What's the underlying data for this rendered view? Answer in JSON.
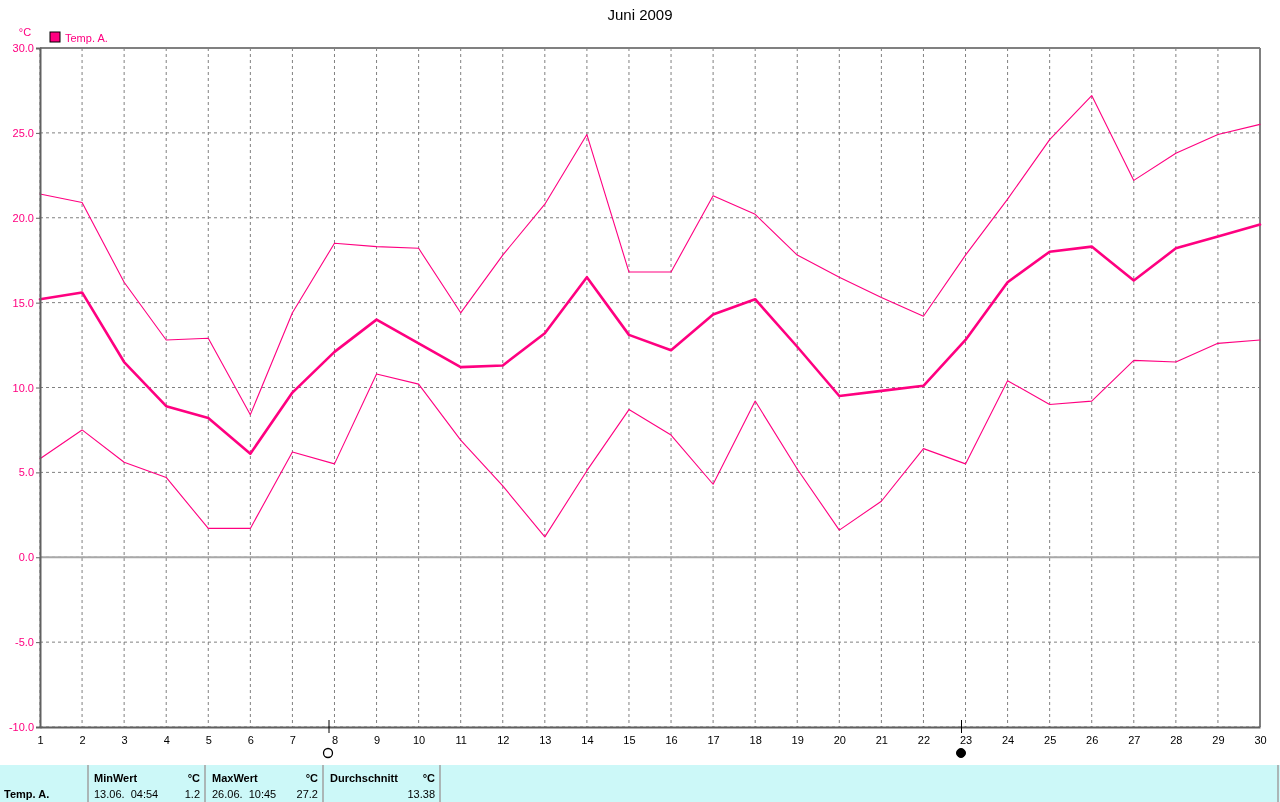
{
  "chart_data": {
    "type": "line",
    "title": "Juni 2009",
    "ylabel": "°C",
    "x": [
      1,
      2,
      3,
      4,
      5,
      6,
      7,
      8,
      9,
      10,
      11,
      12,
      13,
      14,
      15,
      16,
      17,
      18,
      19,
      20,
      21,
      22,
      23,
      24,
      25,
      26,
      27,
      28,
      29,
      30
    ],
    "xlim": [
      1,
      30
    ],
    "xticks": [
      1,
      2,
      3,
      4,
      5,
      6,
      7,
      8,
      9,
      10,
      11,
      12,
      13,
      14,
      15,
      16,
      17,
      18,
      19,
      20,
      21,
      22,
      23,
      24,
      25,
      26,
      27,
      28,
      29,
      30
    ],
    "ylim": [
      -10,
      30
    ],
    "yticks": [
      {
        "value": -10,
        "label": "-10.0"
      },
      {
        "value": -5,
        "label": "-5.0"
      },
      {
        "value": 0,
        "label": "0.0"
      },
      {
        "value": 5,
        "label": "5.0"
      },
      {
        "value": 10,
        "label": "10.0"
      },
      {
        "value": 15,
        "label": "15.0"
      },
      {
        "value": 20,
        "label": "20.0"
      },
      {
        "value": 25,
        "label": "25.0"
      },
      {
        "value": 30,
        "label": "30.0"
      }
    ],
    "grid": true,
    "legend": "top left",
    "series": [
      {
        "name": "Temp. A.",
        "color": "#ff0080",
        "values": [
          15.2,
          15.6,
          11.5,
          8.9,
          8.2,
          6.1,
          9.7,
          12.1,
          14.0,
          12.6,
          11.2,
          11.3,
          13.2,
          16.5,
          13.1,
          12.2,
          14.3,
          15.2,
          12.4,
          9.5,
          9.8,
          10.1,
          12.8,
          16.2,
          18.0,
          18.3,
          16.3,
          18.2,
          18.9,
          19.6
        ]
      },
      {
        "color": "#ff0080",
        "values": [
          21.4,
          20.9,
          16.2,
          12.8,
          12.9,
          8.4,
          14.4,
          18.5,
          18.3,
          18.2,
          14.4,
          17.8,
          20.8,
          24.9,
          16.8,
          16.8,
          21.3,
          20.2,
          17.8,
          16.5,
          15.3,
          14.2,
          17.8,
          21.1,
          24.6,
          27.2,
          22.2,
          23.8,
          24.9,
          25.5
        ]
      },
      {
        "color": "#ff0080",
        "values": [
          5.8,
          7.5,
          5.6,
          4.7,
          1.7,
          1.7,
          6.2,
          5.5,
          10.8,
          10.2,
          6.9,
          4.2,
          1.2,
          5.1,
          8.7,
          7.2,
          4.3,
          9.2,
          5.2,
          1.6,
          3.3,
          6.4,
          5.5,
          10.4,
          9.0,
          9.2,
          11.6,
          11.5,
          12.6,
          12.8
        ]
      }
    ],
    "ref_lines": [
      {
        "axis": "y",
        "value": 0,
        "color": "#a8a8a8"
      }
    ],
    "annotations": [
      "Temp. A.",
      "MinWert",
      "°C",
      "13.06.  04:54",
      "1.2",
      "MaxWert",
      "°C",
      "26.06.  10:45",
      "27.2",
      "Durchschnitt",
      "°C",
      "13.38"
    ]
  }
}
